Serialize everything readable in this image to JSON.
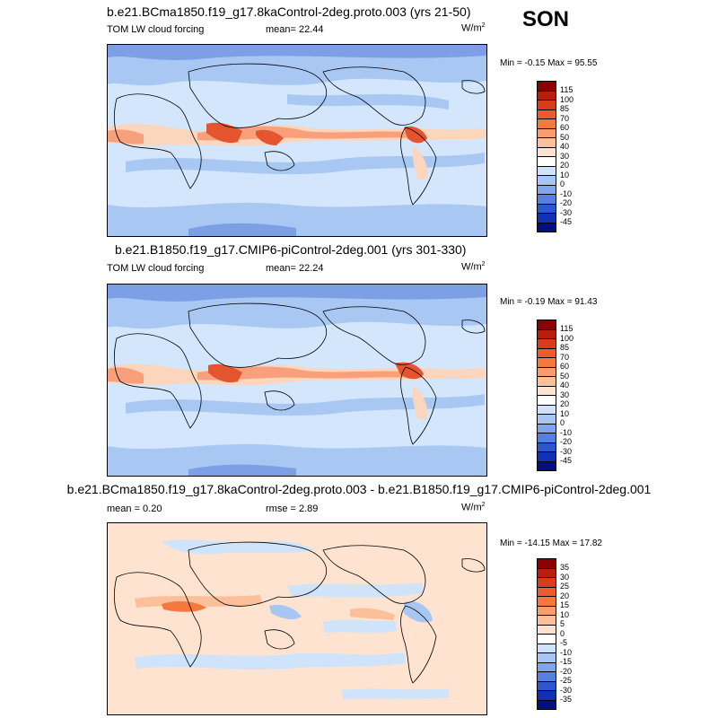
{
  "season": "SON",
  "panels": [
    {
      "title": "b.e21.BCma1850.f19_g17.8kaControl-2deg.proto.003 (yrs 21-50)",
      "left_label": "TOM LW cloud forcing",
      "mid_label": "mean=  22.44",
      "units": "W/m",
      "units_sup": "2",
      "minmax": "Min =  -0.15 Max =  95.55",
      "colorbar_labels": [
        "115",
        "100",
        "85",
        "70",
        "60",
        "50",
        "40",
        "30",
        "20",
        "10",
        "0",
        "-10",
        "-20",
        "-30",
        "-45"
      ],
      "colorbar_colors": [
        "#8b0000",
        "#b81e0e",
        "#d83c1a",
        "#ee5a2c",
        "#f5793f",
        "#f99c6f",
        "#fbbf9a",
        "#fde3d0",
        "#ffffff",
        "#cfe3fa",
        "#a7c6f4",
        "#7fa5ec",
        "#5580e0",
        "#2d56cf",
        "#1030b5",
        "#001080"
      ],
      "map_colors": {
        "base": "#d3e6fb",
        "mid": "#a8c8f3",
        "deep": "#7d9fe6",
        "warm1": "#fcd6bc",
        "warm2": "#f8a07b",
        "hot": "#e4552f"
      }
    },
    {
      "title": "b.e21.B1850.f19_g17.CMIP6-piControl-2deg.001 (yrs 301-330)",
      "left_label": "TOM LW cloud forcing",
      "mid_label": "mean=  22.24",
      "units": "W/m",
      "units_sup": "2",
      "minmax": "Min =  -0.19 Max =  91.43",
      "colorbar_labels": [
        "115",
        "100",
        "85",
        "70",
        "60",
        "50",
        "40",
        "30",
        "20",
        "10",
        "0",
        "-10",
        "-20",
        "-30",
        "-45"
      ],
      "colorbar_colors": [
        "#8b0000",
        "#b81e0e",
        "#d83c1a",
        "#ee5a2c",
        "#f5793f",
        "#f99c6f",
        "#fbbf9a",
        "#fde3d0",
        "#ffffff",
        "#cfe3fa",
        "#a7c6f4",
        "#7fa5ec",
        "#5580e0",
        "#2d56cf",
        "#1030b5",
        "#001080"
      ],
      "map_colors": {
        "base": "#d3e6fb",
        "mid": "#a8c8f3",
        "deep": "#7d9fe6",
        "warm1": "#fcd6bc",
        "warm2": "#f8a07b",
        "hot": "#e4552f"
      }
    },
    {
      "title": "b.e21.BCma1850.f19_g17.8kaControl-2deg.proto.003 - b.e21.B1850.f19_g17.CMIP6-piControl-2deg.001",
      "left_label": "mean =   0.20",
      "mid_label": "rmse =   2.89",
      "units": "W/m",
      "units_sup": "2",
      "minmax": "Min = -14.15 Max =  17.82",
      "colorbar_labels": [
        "35",
        "30",
        "25",
        "20",
        "15",
        "10",
        "5",
        "0",
        "-5",
        "-10",
        "-15",
        "-20",
        "-25",
        "-30",
        "-35"
      ],
      "colorbar_colors": [
        "#8b0000",
        "#b81e0e",
        "#d83c1a",
        "#ee5a2c",
        "#f5793f",
        "#f99c6f",
        "#fbbf9a",
        "#fde3d0",
        "#ffffff",
        "#cfe3fa",
        "#a7c6f4",
        "#7fa5ec",
        "#5580e0",
        "#2d56cf",
        "#1030b5",
        "#001080"
      ],
      "map_colors": {
        "base": "#fde3d0",
        "mid": "#cfe3fa",
        "deep": "#a7c6f4",
        "warm1": "#fbbf9a",
        "warm2": "#f5793f",
        "hot": "#d83c1a"
      }
    }
  ]
}
